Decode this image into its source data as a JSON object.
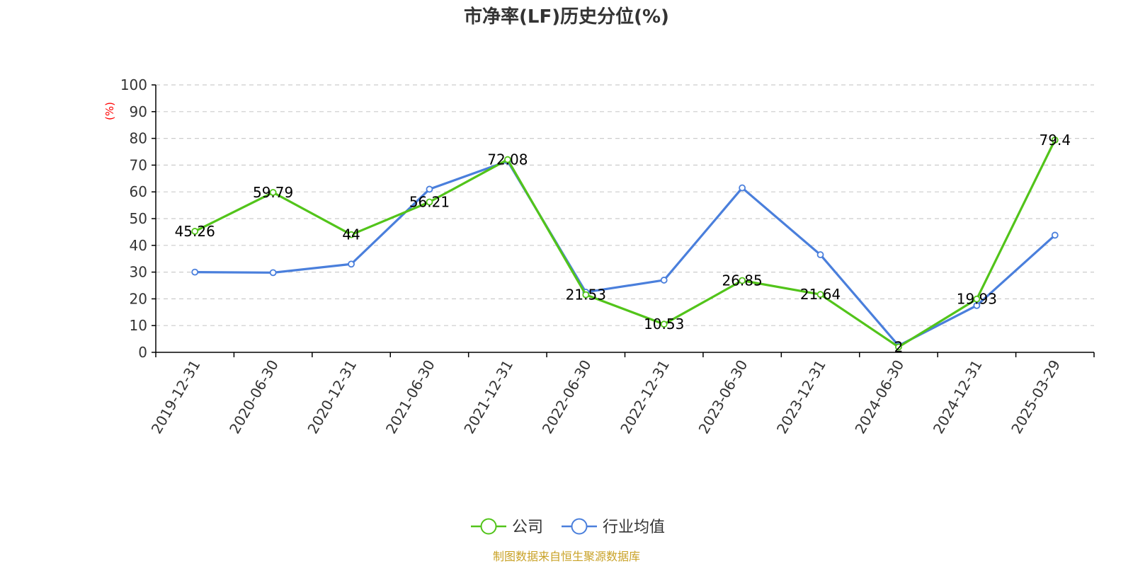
{
  "chart_data": {
    "type": "line",
    "title": "市净率(LF)历史分位(%)",
    "ylabel": "(%)",
    "ylim": [
      0,
      100
    ],
    "yticks": [
      0,
      10,
      20,
      30,
      40,
      50,
      60,
      70,
      80,
      90,
      100
    ],
    "y_tick_labels": [
      "0",
      "10",
      "20",
      "30",
      "40",
      "50",
      "60",
      "70",
      "80",
      "90",
      "100"
    ],
    "grid": true,
    "legend_position": "bottom",
    "categories": [
      "2019-12-31",
      "2020-06-30",
      "2020-12-31",
      "2021-06-30",
      "2021-12-31",
      "2022-06-30",
      "2022-12-31",
      "2023-06-30",
      "2023-12-31",
      "2024-06-30",
      "2024-12-31",
      "2025-03-29"
    ],
    "series": [
      {
        "name": "公司",
        "color": "#52c41a",
        "values": [
          45.26,
          59.79,
          44,
          56.21,
          72.08,
          21.53,
          10.53,
          26.85,
          21.64,
          2,
          19.93,
          79.4
        ],
        "data_labels": [
          "45.26",
          "59.79",
          "44",
          "56.21",
          "72.08",
          "21.53",
          "10.53",
          "26.85",
          "21.64",
          "2",
          "19.93",
          "79.4"
        ]
      },
      {
        "name": "行业均值",
        "color": "#4a7fdc",
        "values": [
          30,
          29.8,
          33,
          61,
          71.5,
          22.5,
          27,
          61.5,
          36.5,
          2.5,
          17.5,
          43.8
        ]
      }
    ]
  },
  "colors": {
    "axis": "#000000",
    "grid": "#cccccc",
    "unit_label": "#ff0000",
    "source_text": "#c9a227"
  },
  "footer": {
    "source": "制图数据来自恒生聚源数据库"
  }
}
